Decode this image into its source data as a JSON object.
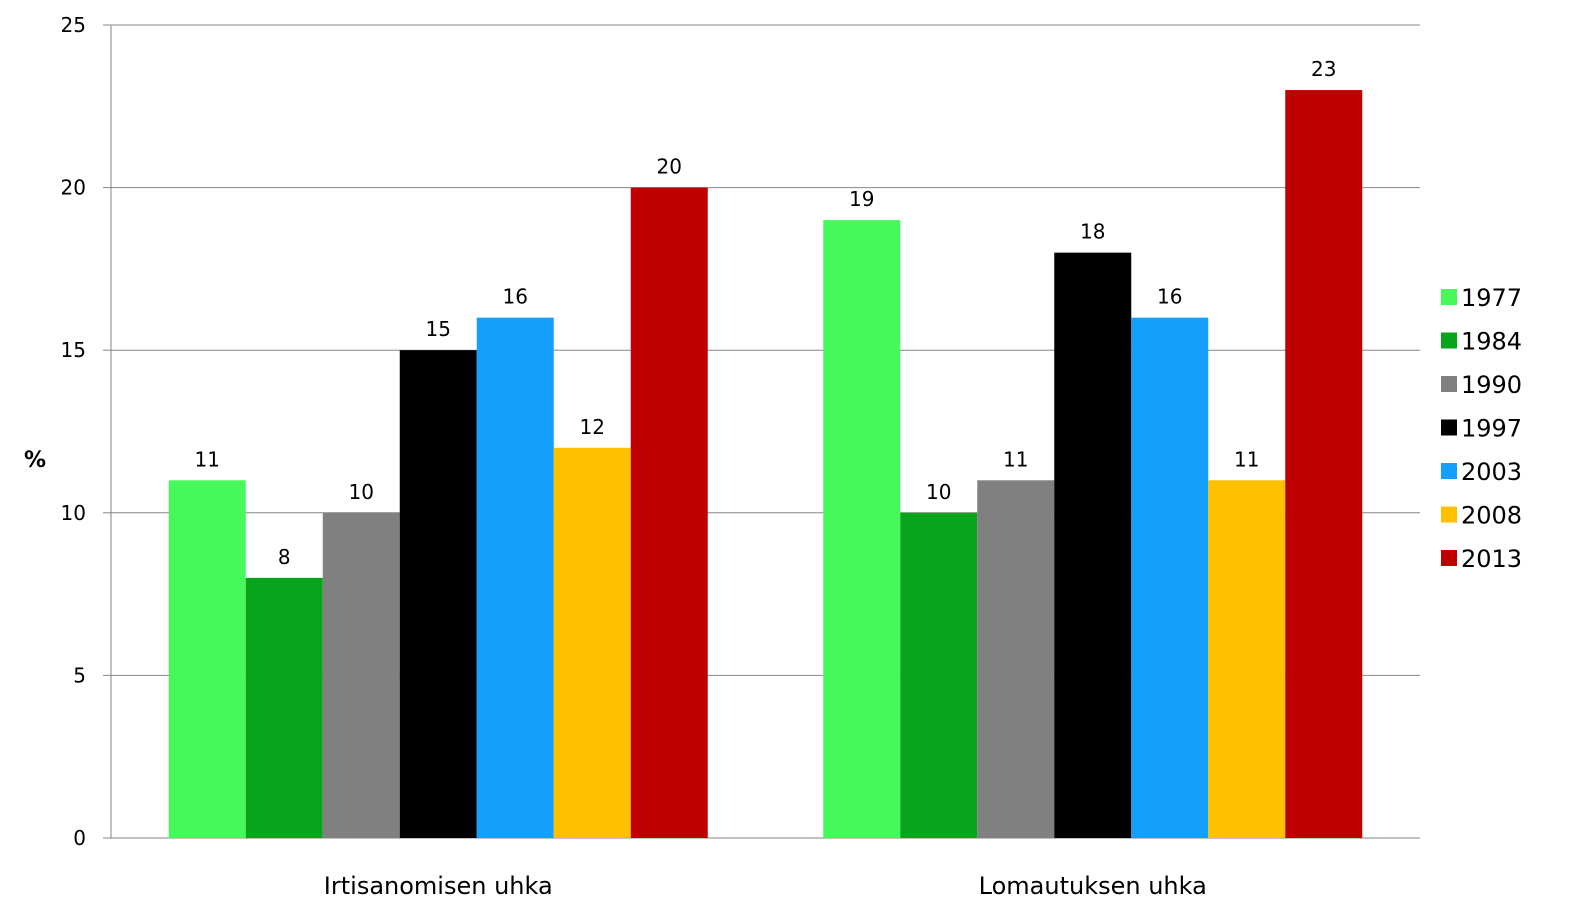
{
  "chart_data": {
    "type": "bar",
    "title": "",
    "xlabel": "",
    "ylabel": "%",
    "ylim": [
      0,
      25
    ],
    "yticks": [
      0,
      5,
      10,
      15,
      20,
      25
    ],
    "grid": true,
    "legend_position": "right",
    "categories": [
      "Irtisanomisen uhka",
      "Lomautuksen uhka"
    ],
    "series": [
      {
        "name": "1977",
        "color": "#47F85A",
        "values": [
          11,
          19
        ]
      },
      {
        "name": "1984",
        "color": "#07A51B",
        "values": [
          8,
          10
        ]
      },
      {
        "name": "1990",
        "color": "#808080",
        "values": [
          10,
          11
        ]
      },
      {
        "name": "1997",
        "color": "#000000",
        "values": [
          15,
          18
        ]
      },
      {
        "name": "2003",
        "color": "#139FFB",
        "values": [
          16,
          16
        ]
      },
      {
        "name": "2008",
        "color": "#FFC000",
        "values": [
          12,
          11
        ]
      },
      {
        "name": "2013",
        "color": "#C00000",
        "values": [
          20,
          23
        ]
      }
    ]
  }
}
